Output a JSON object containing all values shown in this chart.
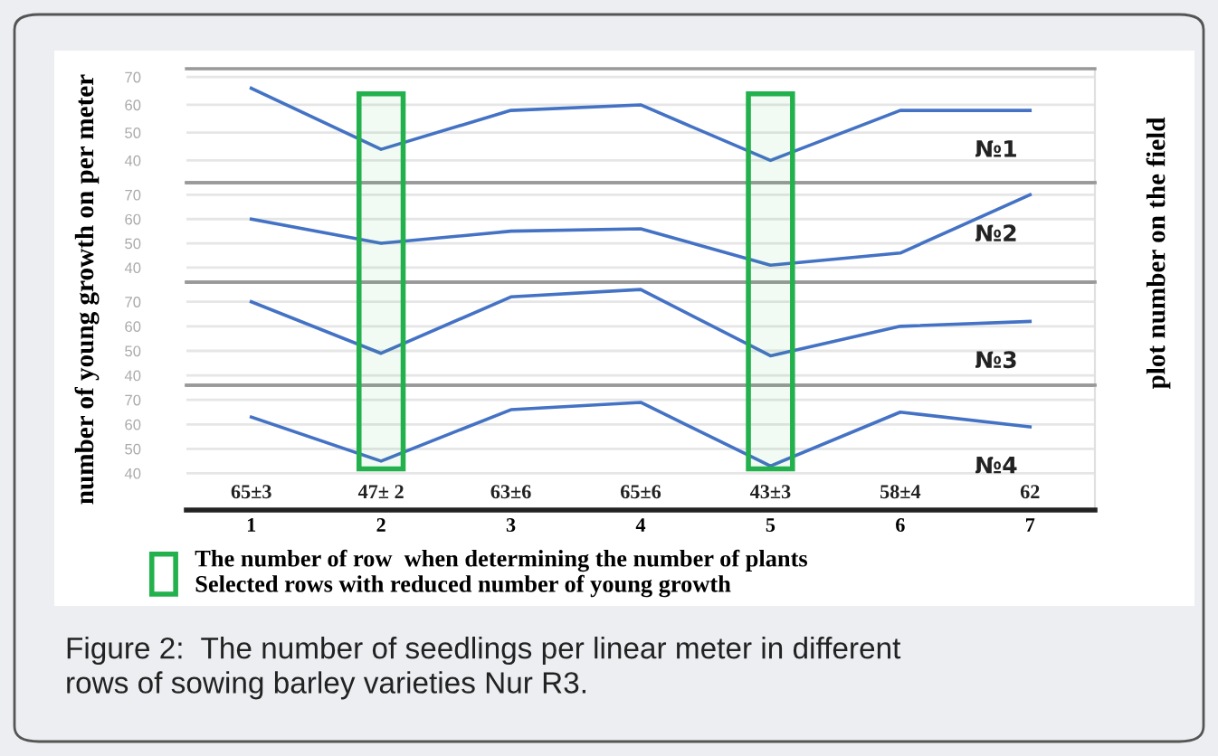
{
  "chart_data": [
    {
      "type": "line",
      "ylabel": "number of young growth on per meter",
      "y2label": "plot number on the field",
      "categories": [
        null,
        null,
        null,
        null,
        null,
        null,
        null
      ],
      "ylim": [
        32,
        73
      ],
      "yticks": [
        40,
        50,
        60,
        70
      ],
      "grid": "y",
      "tick_labels": "y",
      "series": [
        {
          "name": "№1",
          "color": "#4472c4",
          "values": [
            66,
            44,
            58,
            60,
            40,
            58,
            58
          ]
        }
      ]
    },
    {
      "type": "line",
      "categories": [
        null,
        null,
        null,
        null,
        null,
        null,
        null
      ],
      "ylim": [
        34,
        75
      ],
      "yticks": [
        40,
        50,
        60,
        70
      ],
      "grid": "y",
      "tick_labels": "y",
      "series": [
        {
          "name": "№2",
          "color": "#4472c4",
          "values": [
            60,
            50,
            55,
            56,
            41,
            46,
            70
          ]
        }
      ]
    },
    {
      "type": "line",
      "categories": [
        null,
        null,
        null,
        null,
        null,
        null,
        null
      ],
      "ylim": [
        36,
        78
      ],
      "yticks": [
        40,
        50,
        60,
        70
      ],
      "grid": "y",
      "tick_labels": "y",
      "series": [
        {
          "name": "№3",
          "color": "#4472c4",
          "values": [
            70,
            49,
            72,
            75,
            48,
            60,
            62
          ]
        }
      ]
    },
    {
      "type": "line",
      "categories": [
        "1",
        "2",
        "3",
        "4",
        "5",
        "6",
        "7"
      ],
      "ylim": [
        25,
        76
      ],
      "yticks": [
        40,
        50,
        60,
        70
      ],
      "grid": "y",
      "series": [
        {
          "name": "№4",
          "color": "#4472c4",
          "values": [
            63,
            45,
            66,
            69,
            43,
            65,
            59
          ]
        }
      ],
      "legend": "bottom left",
      "bands": [
        {
          "axis": "x",
          "from": "2",
          "to": "2",
          "color": "#22b14c",
          "label": "The number of row  when determining the number of plants\nSelected rows with reduced number of young growth"
        },
        {
          "axis": "x",
          "from": "5",
          "to": "5",
          "color": "#22b14c"
        }
      ],
      "annotations": [
        "65±3",
        "47± 2",
        "63±6",
        "65±6",
        "43±3",
        "58±4",
        "62",
        "Figure 2:  The number of seedlings per linear meter in different\nrows of sowing barley varieties Nur R3."
      ]
    }
  ]
}
